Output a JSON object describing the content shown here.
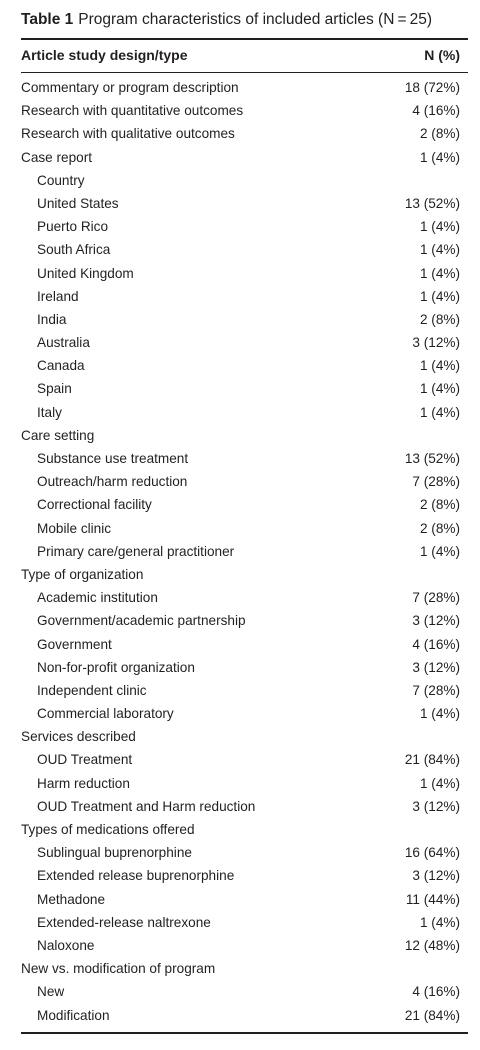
{
  "caption": {
    "label": "Table 1",
    "text": "Program characteristics of included articles (N = 25)"
  },
  "header": {
    "col1": "Article study design/type",
    "col2": "N (%)"
  },
  "rows": [
    {
      "label": "Commentary or program description",
      "value": "18 (72%)",
      "indent": false
    },
    {
      "label": "Research with quantitative outcomes",
      "value": "4 (16%)",
      "indent": false
    },
    {
      "label": "Research with qualitative outcomes",
      "value": "2 (8%)",
      "indent": false
    },
    {
      "label": "Case report",
      "value": "1 (4%)",
      "indent": false
    },
    {
      "label": "Country",
      "value": "",
      "indent": true
    },
    {
      "label": "United States",
      "value": "13 (52%)",
      "indent": true
    },
    {
      "label": "Puerto Rico",
      "value": "1 (4%)",
      "indent": true
    },
    {
      "label": "South Africa",
      "value": "1 (4%)",
      "indent": true
    },
    {
      "label": "United Kingdom",
      "value": "1 (4%)",
      "indent": true
    },
    {
      "label": "Ireland",
      "value": "1 (4%)",
      "indent": true
    },
    {
      "label": "India",
      "value": "2 (8%)",
      "indent": true
    },
    {
      "label": "Australia",
      "value": "3 (12%)",
      "indent": true
    },
    {
      "label": "Canada",
      "value": "1 (4%)",
      "indent": true
    },
    {
      "label": "Spain",
      "value": "1 (4%)",
      "indent": true
    },
    {
      "label": "Italy",
      "value": "1 (4%)",
      "indent": true
    },
    {
      "label": "Care setting",
      "value": "",
      "indent": false
    },
    {
      "label": "Substance use treatment",
      "value": "13 (52%)",
      "indent": true
    },
    {
      "label": "Outreach/harm reduction",
      "value": "7 (28%)",
      "indent": true
    },
    {
      "label": "Correctional facility",
      "value": "2 (8%)",
      "indent": true
    },
    {
      "label": "Mobile clinic",
      "value": "2 (8%)",
      "indent": true
    },
    {
      "label": "Primary care/general practitioner",
      "value": "1 (4%)",
      "indent": true
    },
    {
      "label": "Type of organization",
      "value": "",
      "indent": false
    },
    {
      "label": "Academic institution",
      "value": "7 (28%)",
      "indent": true
    },
    {
      "label": "Government/academic partnership",
      "value": "3 (12%)",
      "indent": true
    },
    {
      "label": "Government",
      "value": "4 (16%)",
      "indent": true
    },
    {
      "label": "Non-for-profit organization",
      "value": "3 (12%)",
      "indent": true
    },
    {
      "label": "Independent clinic",
      "value": "7 (28%)",
      "indent": true
    },
    {
      "label": "Commercial laboratory",
      "value": "1 (4%)",
      "indent": true
    },
    {
      "label": "Services described",
      "value": "",
      "indent": false
    },
    {
      "label": "OUD Treatment",
      "value": "21 (84%)",
      "indent": true
    },
    {
      "label": "Harm reduction",
      "value": "1 (4%)",
      "indent": true
    },
    {
      "label": "OUD Treatment and Harm reduction",
      "value": "3 (12%)",
      "indent": true
    },
    {
      "label": "Types of medications offered",
      "value": "",
      "indent": false
    },
    {
      "label": "Sublingual buprenorphine",
      "value": "16 (64%)",
      "indent": true
    },
    {
      "label": "Extended release buprenorphine",
      "value": "3 (12%)",
      "indent": true
    },
    {
      "label": "Methadone",
      "value": "11 (44%)",
      "indent": true
    },
    {
      "label": "Extended-release naltrexone",
      "value": "1 (4%)",
      "indent": true
    },
    {
      "label": "Naloxone",
      "value": "12 (48%)",
      "indent": true
    },
    {
      "label": "New vs. modification of program",
      "value": "",
      "indent": false
    },
    {
      "label": "New",
      "value": "4 (16%)",
      "indent": true
    },
    {
      "label": "Modification",
      "value": "21 (84%)",
      "indent": true
    }
  ]
}
